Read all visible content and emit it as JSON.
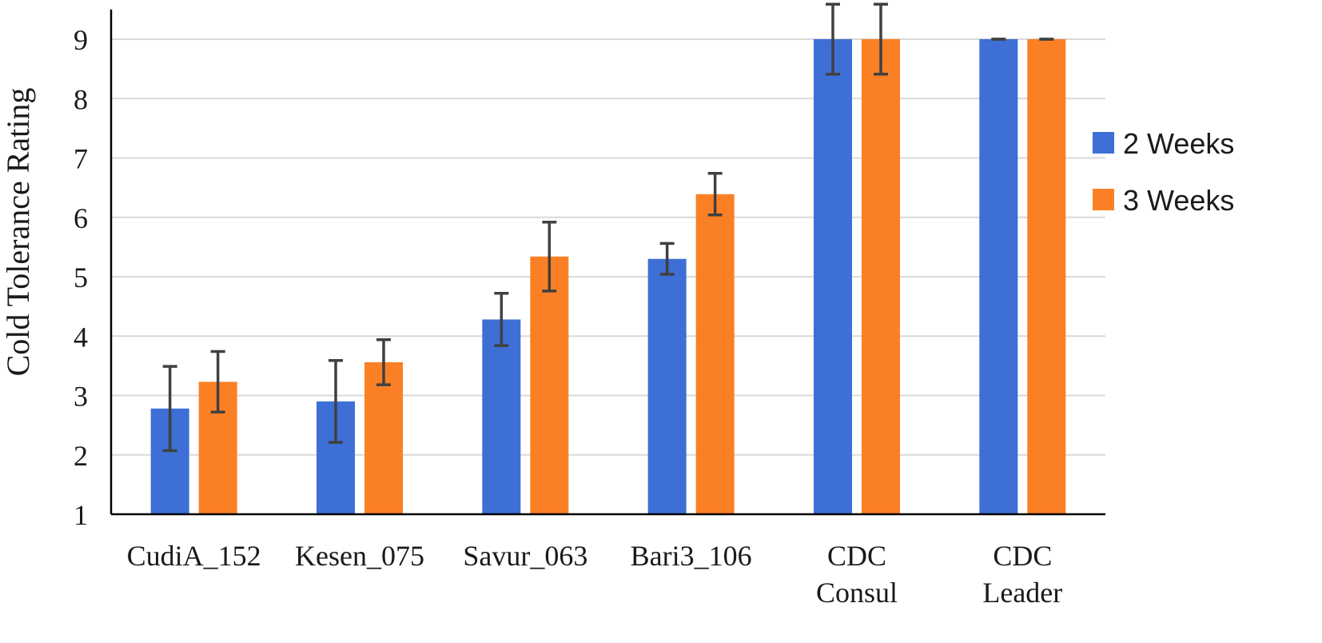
{
  "chart_data": {
    "type": "bar",
    "title": "",
    "xlabel": "",
    "ylabel": "Cold Tolerance Rating",
    "ylim": [
      1,
      9.5
    ],
    "yticks": [
      1,
      2,
      3,
      4,
      5,
      6,
      7,
      8,
      9
    ],
    "grid": true,
    "legend_position": "right",
    "categories": [
      [
        "CudiA_152"
      ],
      [
        "Kesen_075"
      ],
      [
        "Savur_063"
      ],
      [
        "Bari3_106"
      ],
      [
        "CDC",
        "Consul"
      ],
      [
        "CDC",
        "Leader"
      ]
    ],
    "series": [
      {
        "name": "2 Weeks",
        "color": "#3d6fd6",
        "values": [
          2.78,
          2.9,
          4.28,
          5.3,
          9.0,
          9.0
        ],
        "errors": [
          0.71,
          0.69,
          0.44,
          0.26,
          0.59,
          0.0
        ]
      },
      {
        "name": "3 Weeks",
        "color": "#fb8025",
        "values": [
          3.23,
          3.56,
          5.34,
          6.39,
          9.0,
          9.0
        ],
        "errors": [
          0.51,
          0.38,
          0.58,
          0.35,
          0.59,
          0.0
        ]
      }
    ]
  }
}
